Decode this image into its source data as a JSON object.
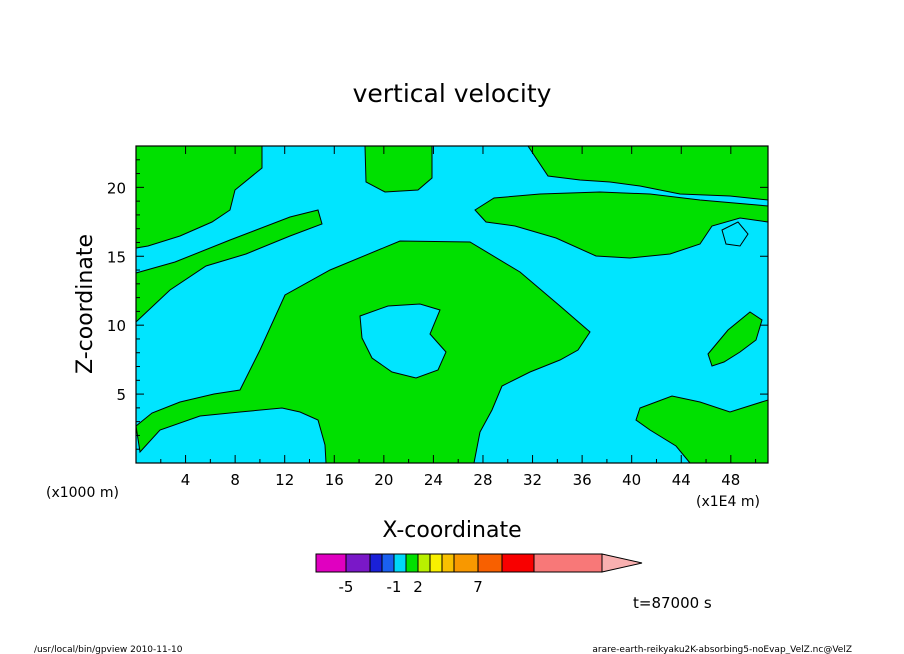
{
  "chart_data": {
    "type": "contour",
    "title": "vertical velocity",
    "xlabel": "X-coordinate",
    "ylabel": "Z-coordinate",
    "x_unit_left": "(x1000 m)",
    "x_unit_right": "(x1E4 m)",
    "xlim": [
      0,
      51
    ],
    "ylim": [
      0,
      23
    ],
    "x_ticks": [
      "4",
      "8",
      "12",
      "16",
      "20",
      "24",
      "28",
      "32",
      "36",
      "40",
      "44",
      "48"
    ],
    "y_ticks": [
      "5",
      "10",
      "15",
      "20"
    ],
    "field_colors": {
      "negative_weak": "#00e5ff",
      "positive_weak": "#00e000",
      "contour_line": "#000000"
    },
    "colorbar": {
      "colors": [
        "#e000c0",
        "#7a18c8",
        "#1a20d8",
        "#1a60f0",
        "#00d8f8",
        "#00e000",
        "#b8f000",
        "#f8f000",
        "#f8c000",
        "#f89800",
        "#f86000",
        "#f80000",
        "#f87878",
        "#f8b0b0"
      ],
      "tick_labels": [
        "-5",
        "-1",
        "2",
        "7"
      ],
      "extend": "right"
    },
    "time_label": "t=87000 s",
    "footer_left": "/usr/local/bin/gpview  2010-11-10",
    "footer_right": "arare-earth-reikyaku2K-absorbing5-noEvap_VelZ.nc@VelZ"
  }
}
